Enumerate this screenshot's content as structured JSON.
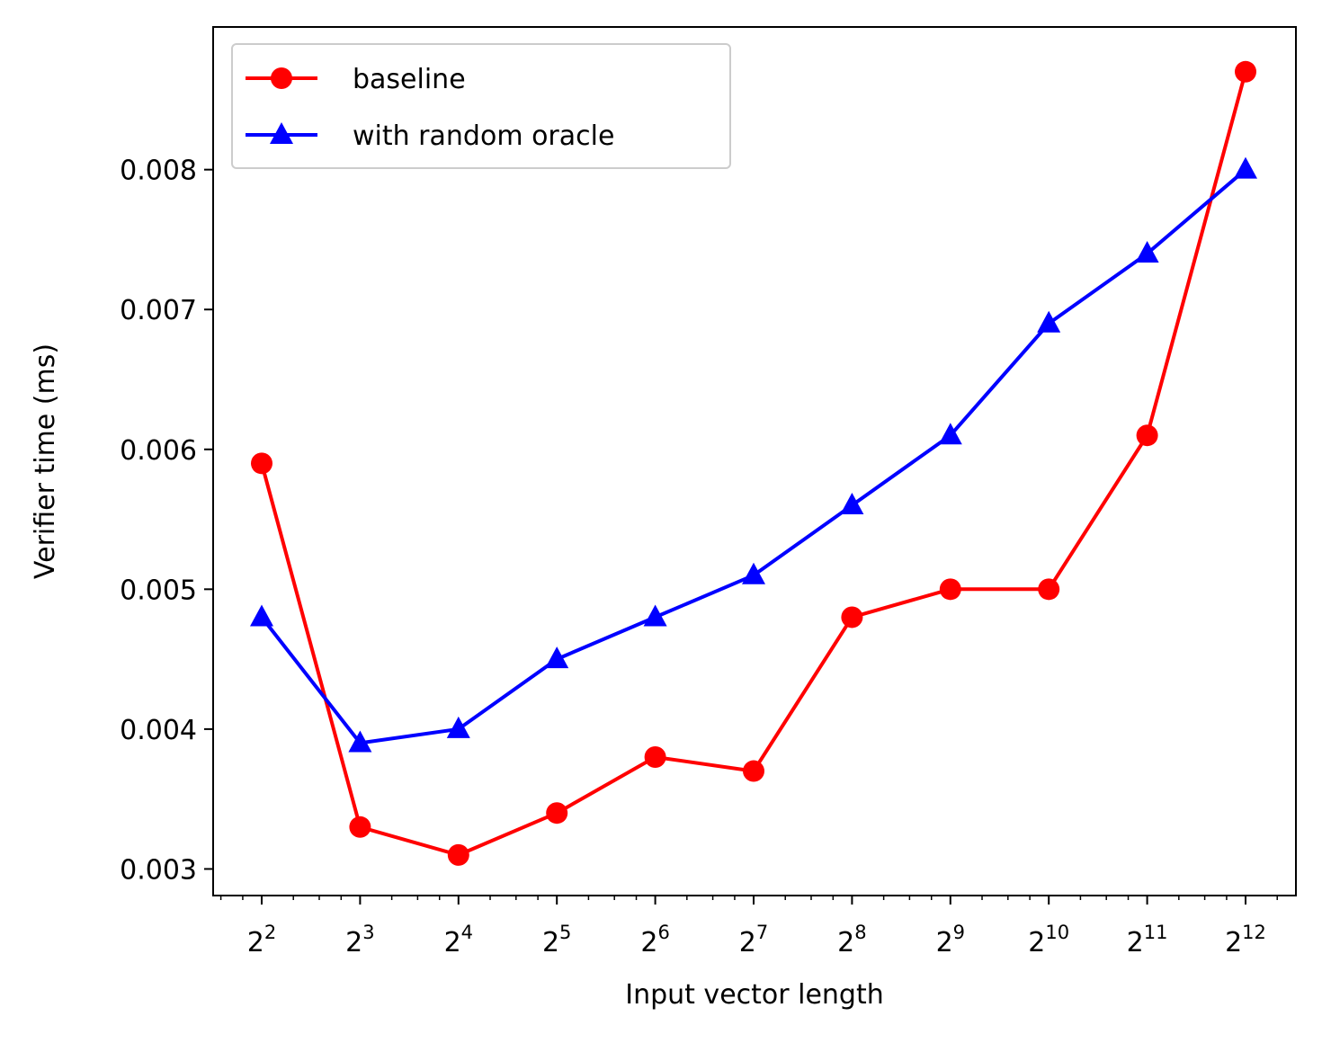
{
  "chart_data": {
    "type": "line",
    "title": "",
    "xlabel": "Input vector length",
    "ylabel": "Verifier time (ms)",
    "xscale": "log2",
    "x_base": "2",
    "x_exponents": [
      "2",
      "3",
      "4",
      "5",
      "6",
      "7",
      "8",
      "9",
      "10",
      "11",
      "12"
    ],
    "x": [
      4,
      8,
      16,
      32,
      64,
      128,
      256,
      512,
      1024,
      2048,
      4096
    ],
    "ylim": [
      0.00281,
      0.00902
    ],
    "yticks": [
      "0.003",
      "0.004",
      "0.005",
      "0.006",
      "0.007",
      "0.008"
    ],
    "ytick_values": [
      0.003,
      0.004,
      0.005,
      0.006,
      0.007,
      0.008
    ],
    "grid": false,
    "legend_position": "top-left",
    "series": [
      {
        "name": "baseline",
        "color": "#ff0000",
        "marker": "circle",
        "values": [
          0.0059,
          0.0033,
          0.0031,
          0.0034,
          0.0038,
          0.0037,
          0.0048,
          0.005,
          0.005,
          0.0061,
          0.0087
        ]
      },
      {
        "name": "with random oracle",
        "color": "#0000ff",
        "marker": "triangle",
        "values": [
          0.0048,
          0.0039,
          0.004,
          0.0045,
          0.0048,
          0.0051,
          0.0056,
          0.0061,
          0.0069,
          0.0074,
          0.008
        ]
      }
    ]
  }
}
